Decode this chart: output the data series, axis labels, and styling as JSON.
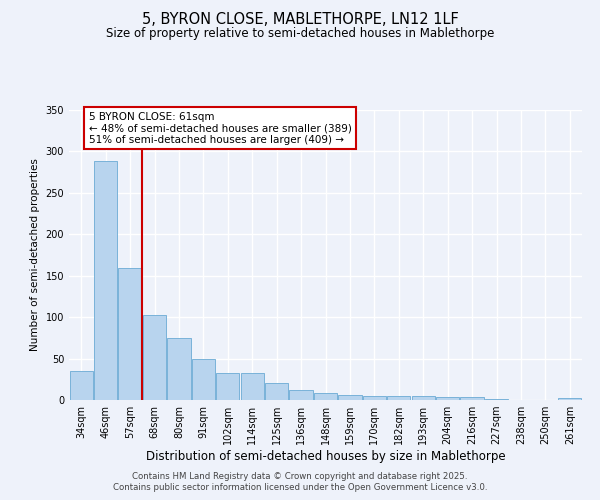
{
  "title": "5, BYRON CLOSE, MABLETHORPE, LN12 1LF",
  "subtitle": "Size of property relative to semi-detached houses in Mablethorpe",
  "xlabel": "Distribution of semi-detached houses by size in Mablethorpe",
  "ylabel": "Number of semi-detached properties",
  "bin_labels": [
    "34sqm",
    "46sqm",
    "57sqm",
    "68sqm",
    "80sqm",
    "91sqm",
    "102sqm",
    "114sqm",
    "125sqm",
    "136sqm",
    "148sqm",
    "159sqm",
    "170sqm",
    "182sqm",
    "193sqm",
    "204sqm",
    "216sqm",
    "227sqm",
    "238sqm",
    "250sqm",
    "261sqm"
  ],
  "bar_heights": [
    35,
    289,
    159,
    103,
    75,
    50,
    33,
    33,
    21,
    12,
    9,
    6,
    5,
    5,
    5,
    4,
    4,
    1,
    0,
    0,
    2
  ],
  "bar_color": "#b8d4ee",
  "bar_edge_color": "#6aaad4",
  "vertical_line_x": 2,
  "vertical_line_color": "#cc0000",
  "annotation_text": "5 BYRON CLOSE: 61sqm\n← 48% of semi-detached houses are smaller (389)\n51% of semi-detached houses are larger (409) →",
  "annotation_box_facecolor": "#ffffff",
  "annotation_box_edgecolor": "#cc0000",
  "ylim": [
    0,
    350
  ],
  "yticks": [
    0,
    50,
    100,
    150,
    200,
    250,
    300,
    350
  ],
  "footer_line1": "Contains HM Land Registry data © Crown copyright and database right 2025.",
  "footer_line2": "Contains public sector information licensed under the Open Government Licence v3.0.",
  "background_color": "#eef2fa",
  "grid_color": "#ffffff",
  "title_fontsize": 10.5,
  "subtitle_fontsize": 8.5,
  "xlabel_fontsize": 8.5,
  "ylabel_fontsize": 7.5,
  "tick_fontsize": 7,
  "footer_fontsize": 6.2,
  "annotation_fontsize": 7.5
}
